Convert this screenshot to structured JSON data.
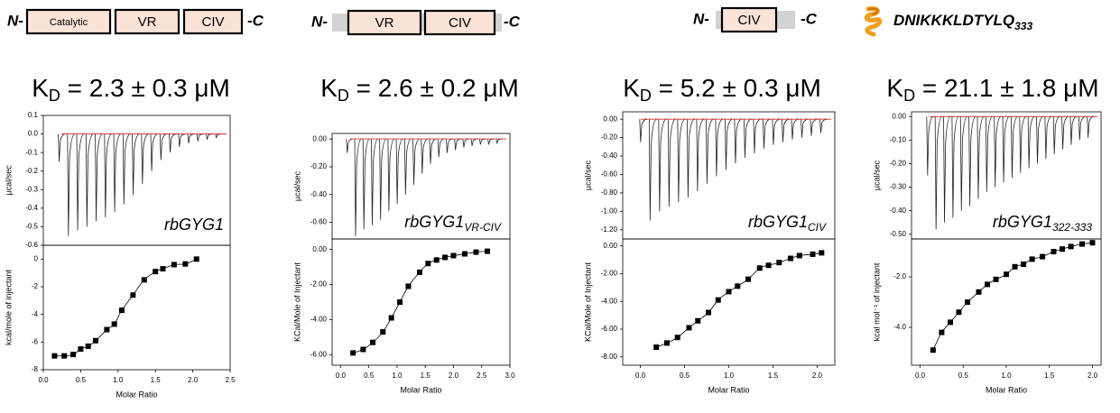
{
  "chart_data": [
    {
      "type": "itc",
      "construct": {
        "n_term": "N-",
        "domains": [
          "Catalytic",
          "VR",
          "CIV"
        ],
        "c_term": "-C"
      },
      "kd": {
        "symbol": "K",
        "sub": "D",
        "text": " = 2.3 ± 0.3 μM"
      },
      "sample": {
        "main": "rbGYG1"
      },
      "thermogram": {
        "ylabel": "µcal/sec",
        "ylim": [
          -0.6,
          0.1
        ],
        "yticks": [
          0.1,
          {
            "value": 0,
            "label": "0.0"
          },
          -0.1,
          -0.2,
          -0.3,
          -0.4,
          -0.5,
          -0.6
        ],
        "values": [
          -0.15,
          -0.55,
          -0.52,
          -0.5,
          -0.47,
          -0.45,
          -0.42,
          -0.38,
          -0.33,
          -0.27,
          -0.2,
          -0.14,
          -0.1,
          -0.07,
          -0.05,
          -0.04,
          -0.03,
          -0.02
        ]
      },
      "isotherm": {
        "xlabel": "Molar Ratio",
        "ylabel": "kcal/mole of injectant",
        "xlim": [
          0,
          2.5
        ],
        "ylim": [
          -8,
          1
        ],
        "xticks": [
          {
            "value": 0,
            "label": "0.0"
          },
          0.5,
          {
            "value": 1,
            "label": "1.0"
          },
          1.5,
          {
            "value": 2,
            "label": "2.0"
          },
          2.5
        ],
        "yticks": [
          0,
          -2,
          -4,
          -6,
          -8
        ],
        "x": [
          0.15,
          0.28,
          0.4,
          0.5,
          0.6,
          0.7,
          0.85,
          0.95,
          1.05,
          1.2,
          1.35,
          1.5,
          1.6,
          1.75,
          1.9,
          2.05
        ],
        "y": [
          -7.0,
          -7.0,
          -6.9,
          -6.5,
          -6.3,
          -5.9,
          -5.1,
          -4.7,
          -3.7,
          -2.6,
          -1.5,
          -0.9,
          -0.7,
          -0.4,
          -0.35,
          0.0
        ]
      }
    },
    {
      "type": "itc",
      "construct": {
        "n_term": "N-",
        "domains": [
          "VR",
          "CIV"
        ],
        "c_term": "-C"
      },
      "kd": {
        "symbol": "K",
        "sub": "D",
        "text": " = 2.6 ± 0.2 μM"
      },
      "sample": {
        "main": "rbGYG1",
        "sub": "VR-CIV"
      },
      "thermogram": {
        "ylabel": "µcal/sec",
        "ylim": [
          -0.72,
          0.04
        ],
        "yticks": [
          {
            "value": 0,
            "label": "0.00"
          },
          {
            "value": -0.2,
            "label": "-0.20"
          },
          {
            "value": -0.4,
            "label": "-0.40"
          },
          {
            "value": -0.6,
            "label": "-0.60"
          }
        ],
        "values": [
          -0.1,
          -0.7,
          -0.65,
          -0.62,
          -0.58,
          -0.52,
          -0.47,
          -0.4,
          -0.33,
          -0.25,
          -0.18,
          -0.13,
          -0.1,
          -0.08,
          -0.06,
          -0.05,
          -0.04,
          -0.04,
          -0.03
        ]
      },
      "isotherm": {
        "xlabel": "Molar Ratio",
        "ylabel": "KCal/Mole of Injectant",
        "xlim": [
          -0.15,
          3.0
        ],
        "ylim": [
          -6.6,
          0.6
        ],
        "xticks": [
          {
            "value": 0,
            "label": "0.0"
          },
          0.5,
          {
            "value": 1,
            "label": "1.0"
          },
          1.5,
          {
            "value": 2,
            "label": "2.0"
          },
          2.5,
          {
            "value": 3,
            "label": "3.0"
          }
        ],
        "yticks": [
          {
            "value": 0,
            "label": "0.00"
          },
          {
            "value": -2,
            "label": "-2.00"
          },
          {
            "value": -4,
            "label": "-4.00"
          },
          {
            "value": -6,
            "label": "-6.00"
          }
        ],
        "x": [
          0.22,
          0.4,
          0.57,
          0.75,
          0.9,
          1.05,
          1.2,
          1.4,
          1.55,
          1.7,
          1.85,
          2.0,
          2.2,
          2.4,
          2.6
        ],
        "y": [
          -5.9,
          -5.7,
          -5.3,
          -4.7,
          -3.9,
          -3.0,
          -2.1,
          -1.3,
          -0.8,
          -0.6,
          -0.45,
          -0.35,
          -0.25,
          -0.15,
          -0.1
        ]
      }
    },
    {
      "type": "itc",
      "construct": {
        "n_term": "N-",
        "domains": [
          "CIV"
        ],
        "c_term": "-C"
      },
      "kd": {
        "symbol": "K",
        "sub": "D",
        "text": " = 5.2 ± 0.3 μM"
      },
      "sample": {
        "main": "rbGYG1",
        "sub": "CIV"
      },
      "thermogram": {
        "ylabel": "µcal/sec",
        "ylim": [
          -1.3,
          0.08
        ],
        "yticks": [
          {
            "value": 0,
            "label": "0.00"
          },
          {
            "value": -0.2,
            "label": "-0.20"
          },
          {
            "value": -0.4,
            "label": "-0.40"
          },
          {
            "value": -0.6,
            "label": "-0.60"
          },
          {
            "value": -0.8,
            "label": "-0.80"
          },
          {
            "value": -1.0,
            "label": "-1.00"
          },
          {
            "value": -1.2,
            "label": "-1.20"
          }
        ],
        "values": [
          -0.25,
          -1.1,
          -1.0,
          -0.95,
          -0.9,
          -0.85,
          -0.78,
          -0.7,
          -0.62,
          -0.55,
          -0.48,
          -0.42,
          -0.37,
          -0.32,
          -0.28,
          -0.25,
          -0.22,
          -0.2,
          -0.18,
          -0.15
        ]
      },
      "isotherm": {
        "xlabel": "Molar Ratio",
        "ylabel": "KCal/Mole of Injectant",
        "xlim": [
          -0.2,
          2.2
        ],
        "ylim": [
          -8.6,
          0.5
        ],
        "xticks": [
          {
            "value": 0,
            "label": "0.0"
          },
          0.5,
          {
            "value": 1,
            "label": "1.0"
          },
          1.5,
          {
            "value": 2,
            "label": "2.0"
          }
        ],
        "yticks": [
          {
            "value": 0,
            "label": "0.00"
          },
          {
            "value": -2,
            "label": "-2.00"
          },
          {
            "value": -4,
            "label": "-4.00"
          },
          {
            "value": -6,
            "label": "-6.00"
          },
          {
            "value": -8,
            "label": "-8.00"
          }
        ],
        "x": [
          0.18,
          0.3,
          0.42,
          0.55,
          0.65,
          0.77,
          0.88,
          1.0,
          1.1,
          1.22,
          1.35,
          1.45,
          1.57,
          1.7,
          1.8,
          1.95,
          2.05
        ],
        "y": [
          -7.3,
          -7.0,
          -6.6,
          -5.9,
          -5.4,
          -4.8,
          -3.9,
          -3.3,
          -2.9,
          -2.4,
          -1.6,
          -1.4,
          -1.2,
          -0.9,
          -0.7,
          -0.6,
          -0.5
        ]
      }
    },
    {
      "type": "itc",
      "construct": {
        "peptide": "DNIKKKLDTYLQ",
        "peptide_sub": "333"
      },
      "kd": {
        "symbol": "K",
        "sub": "D",
        "text": " = 21.1 ± 1.8 μM"
      },
      "sample": {
        "main": "rbGYG1",
        "sub": "322-333"
      },
      "thermogram": {
        "ylabel": "µcal/sec",
        "ylim": [
          -0.52,
          0.02
        ],
        "yticks": [
          {
            "value": 0,
            "label": "0.00"
          },
          {
            "value": -0.1,
            "label": "-0.10"
          },
          {
            "value": -0.2,
            "label": "-0.20"
          },
          {
            "value": -0.3,
            "label": "-0.30"
          },
          {
            "value": -0.4,
            "label": "-0.40"
          },
          {
            "value": -0.5,
            "label": "-0.50"
          }
        ],
        "values": [
          -0.25,
          -0.48,
          -0.45,
          -0.43,
          -0.4,
          -0.38,
          -0.35,
          -0.32,
          -0.3,
          -0.28,
          -0.26,
          -0.24,
          -0.22,
          -0.2,
          -0.18,
          -0.16,
          -0.14,
          -0.12,
          -0.1,
          -0.09
        ]
      },
      "isotherm": {
        "xlabel": "Molar Ratio",
        "ylabel": "kcal mol⁻¹ of injectant",
        "xlim": [
          -0.1,
          2.1
        ],
        "ylim": [
          -5.5,
          -0.5
        ],
        "xticks": [
          {
            "value": 0,
            "label": "0.0"
          },
          0.5,
          {
            "value": 1,
            "label": "1.0"
          },
          1.5,
          {
            "value": 2,
            "label": "2.0"
          }
        ],
        "yticks": [
          {
            "value": -2,
            "label": "-2.0"
          },
          {
            "value": -4,
            "label": "-4.0"
          }
        ],
        "x": [
          0.15,
          0.25,
          0.35,
          0.45,
          0.55,
          0.68,
          0.78,
          0.88,
          1.0,
          1.1,
          1.2,
          1.3,
          1.42,
          1.55,
          1.65,
          1.75,
          1.88,
          2.0
        ],
        "y": [
          -4.9,
          -4.2,
          -3.8,
          -3.4,
          -3.0,
          -2.6,
          -2.3,
          -2.1,
          -1.9,
          -1.6,
          -1.5,
          -1.3,
          -1.2,
          -1.0,
          -0.9,
          -0.8,
          -0.7,
          -0.65
        ]
      }
    }
  ]
}
